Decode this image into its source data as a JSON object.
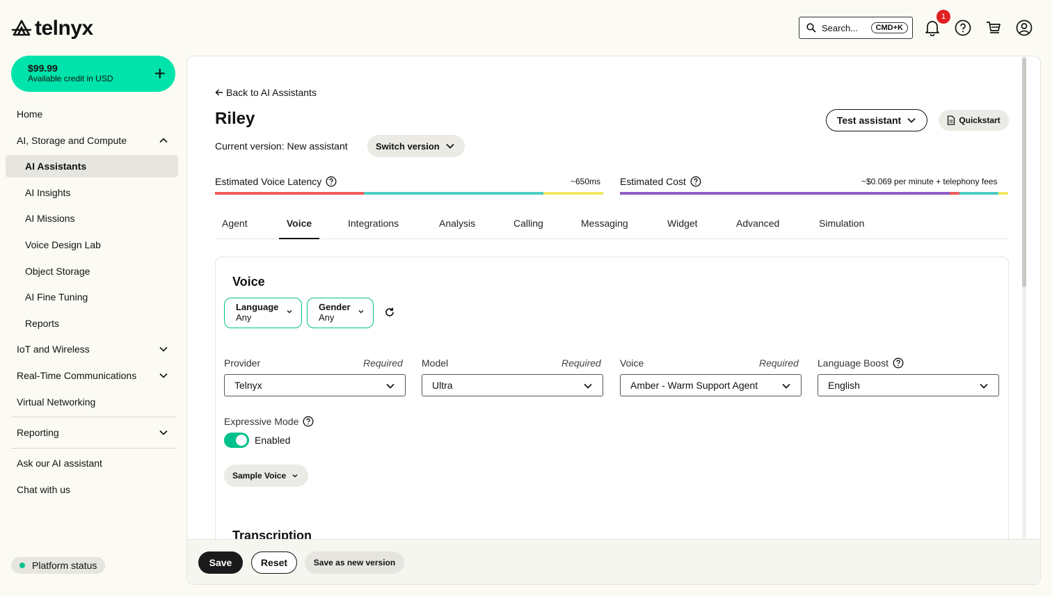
{
  "brand": {
    "name": "telnyx"
  },
  "header": {
    "search_placeholder": "Search...",
    "search_shortcut": "CMD+K",
    "notification_count": "1"
  },
  "sidebar": {
    "credit_amount": "$99.99",
    "credit_label": "Available credit in USD",
    "items": [
      {
        "label": "Home"
      },
      {
        "label": "AI, Storage and Compute"
      },
      {
        "label": "AI Assistants"
      },
      {
        "label": "AI Insights"
      },
      {
        "label": "AI Missions"
      },
      {
        "label": "Voice Design Lab"
      },
      {
        "label": "Object Storage"
      },
      {
        "label": "AI Fine Tuning"
      },
      {
        "label": "Reports"
      },
      {
        "label": "IoT and Wireless"
      },
      {
        "label": "Real-Time Communications"
      },
      {
        "label": "Virtual Networking"
      },
      {
        "label": "Reporting"
      },
      {
        "label": "Ask our AI assistant"
      },
      {
        "label": "Chat with us"
      }
    ],
    "platform_status": "Platform status"
  },
  "main": {
    "back_link": "Back to AI Assistants",
    "title": "Riley",
    "version_text": "Current version: New assistant",
    "switch_version": "Switch version",
    "test_assistant": "Test assistant",
    "quickstart": "Quickstart",
    "latency_label": "Estimated Voice Latency",
    "latency_value": "~650ms",
    "cost_label": "Estimated Cost",
    "cost_value": "~$0.069 per minute + telephony fees",
    "colors": {
      "accent": "#00c08b",
      "credit_bg": "#00e3aa",
      "red": "#ef5b5b",
      "teal": "#4ecdc4",
      "yellow": "#f5e663",
      "purple": "#8e5cc7"
    },
    "tabs": [
      {
        "label": "Agent"
      },
      {
        "label": "Voice"
      },
      {
        "label": "Integrations"
      },
      {
        "label": "Analysis"
      },
      {
        "label": "Calling"
      },
      {
        "label": "Messaging"
      },
      {
        "label": "Widget"
      },
      {
        "label": "Advanced"
      },
      {
        "label": "Simulation"
      }
    ],
    "active_tab": "Voice"
  },
  "voice": {
    "section_title": "Voice",
    "filters": [
      {
        "label": "Language",
        "value": "Any"
      },
      {
        "label": "Gender",
        "value": "Any"
      }
    ],
    "fields": [
      {
        "label": "Provider",
        "required": "Required",
        "value": "Telnyx"
      },
      {
        "label": "Model",
        "required": "Required",
        "value": "Ultra"
      },
      {
        "label": "Voice",
        "required": "Required",
        "value": "Amber - Warm Support Agent"
      },
      {
        "label": "Language Boost",
        "required": "",
        "value": "English"
      }
    ],
    "expressive_label": "Expressive Mode",
    "expressive_state": "Enabled",
    "sample_voice": "Sample Voice",
    "next_section_title": "Transcription"
  },
  "footer": {
    "save": "Save",
    "reset": "Reset",
    "save_new": "Save as new version"
  }
}
